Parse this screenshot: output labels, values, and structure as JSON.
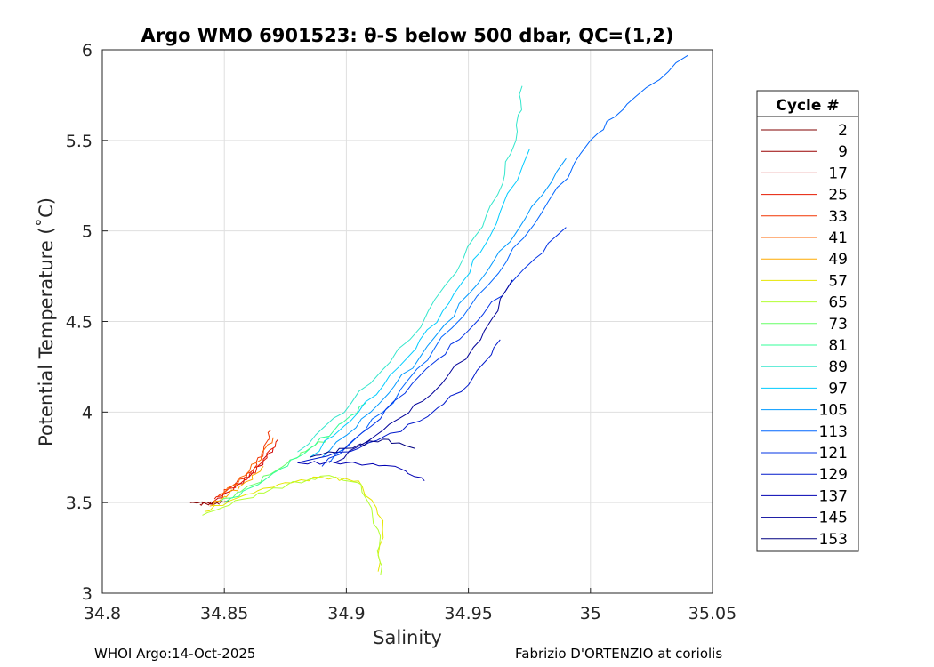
{
  "chart_data": {
    "type": "line",
    "title": "Argo WMO 6901523: θ-S below 500 dbar,  QC=(1,2)",
    "xlabel": "Salinity",
    "ylabel": "Potential Temperature (˚C)",
    "xlim": [
      34.8,
      35.05
    ],
    "ylim": [
      3,
      6
    ],
    "xticks": [
      "34.8",
      "34.85",
      "34.9",
      "34.95",
      "35",
      "35.05"
    ],
    "yticks": [
      "3",
      "3.5",
      "4",
      "4.5",
      "5",
      "5.5",
      "6"
    ],
    "grid": true,
    "colormap": "jet",
    "legend": {
      "title": "Cycle #",
      "placement": "outside-right",
      "entries": [
        "2",
        "9",
        "17",
        "25",
        "33",
        "41",
        "49",
        "57",
        "65",
        "73",
        "81",
        "89",
        "97",
        "105",
        "113",
        "121",
        "129",
        "137",
        "145",
        "153"
      ]
    },
    "series": [
      {
        "name": "2",
        "color": "#800000",
        "x": [
          34.836,
          34.842,
          34.848
        ],
        "y": [
          3.5,
          3.5,
          3.49
        ]
      },
      {
        "name": "9",
        "color": "#990000",
        "x": [
          34.84,
          34.846,
          34.852
        ],
        "y": [
          3.49,
          3.5,
          3.51
        ]
      },
      {
        "name": "17",
        "color": "#cc0000",
        "x": [
          34.845,
          34.852,
          34.858,
          34.864,
          34.87
        ],
        "y": [
          3.5,
          3.56,
          3.62,
          3.7,
          3.8
        ]
      },
      {
        "name": "25",
        "color": "#e61a00",
        "x": [
          34.846,
          34.853,
          34.86,
          34.866,
          34.872
        ],
        "y": [
          3.52,
          3.58,
          3.64,
          3.73,
          3.85
        ]
      },
      {
        "name": "33",
        "color": "#f23300",
        "x": [
          34.847,
          34.854,
          34.861,
          34.866,
          34.869
        ],
        "y": [
          3.53,
          3.6,
          3.67,
          3.78,
          3.9
        ]
      },
      {
        "name": "41",
        "color": "#ff6600",
        "x": [
          34.848,
          34.856,
          34.863,
          34.87
        ],
        "y": [
          3.54,
          3.62,
          3.72,
          3.86
        ]
      },
      {
        "name": "49",
        "color": "#ffaa00",
        "x": [
          34.844,
          34.852,
          34.86,
          34.866
        ],
        "y": [
          3.48,
          3.55,
          3.62,
          3.7
        ]
      },
      {
        "name": "57",
        "color": "#e6e600",
        "x": [
          34.842,
          34.856,
          34.872,
          34.89,
          34.905,
          34.915,
          34.913
        ],
        "y": [
          3.45,
          3.53,
          3.6,
          3.64,
          3.62,
          3.4,
          3.12
        ]
      },
      {
        "name": "65",
        "color": "#b3ff33",
        "x": [
          34.841,
          34.858,
          34.876,
          34.893,
          34.906,
          34.913,
          34.914
        ],
        "y": [
          3.43,
          3.52,
          3.6,
          3.65,
          3.6,
          3.35,
          3.1
        ]
      },
      {
        "name": "73",
        "color": "#66ff66",
        "x": [
          34.848,
          34.862,
          34.876,
          34.885,
          34.893
        ],
        "y": [
          3.5,
          3.6,
          3.72,
          3.8,
          3.86
        ]
      },
      {
        "name": "81",
        "color": "#33ff99",
        "x": [
          34.85,
          34.866,
          34.88,
          34.895,
          34.908
        ],
        "y": [
          3.5,
          3.62,
          3.75,
          3.9,
          4.05
        ]
      },
      {
        "name": "89",
        "color": "#33e6cc",
        "x": [
          34.88,
          34.902,
          34.926,
          34.948,
          34.962,
          34.97,
          34.972
        ],
        "y": [
          3.78,
          4.05,
          4.4,
          4.85,
          5.2,
          5.55,
          5.8
        ]
      },
      {
        "name": "97",
        "color": "#00ccff",
        "x": [
          34.885,
          34.905,
          34.925,
          34.942,
          34.958,
          34.975
        ],
        "y": [
          3.75,
          4.0,
          4.3,
          4.6,
          4.95,
          5.45
        ]
      },
      {
        "name": "105",
        "color": "#0099ff",
        "x": [
          34.89,
          34.91,
          34.93,
          34.95,
          34.97,
          34.99
        ],
        "y": [
          3.75,
          4.0,
          4.3,
          4.65,
          5.0,
          5.4
        ]
      },
      {
        "name": "113",
        "color": "#0066ff",
        "x": [
          34.893,
          34.915,
          34.936,
          34.958,
          34.98,
          35.0,
          35.015,
          35.04
        ],
        "y": [
          3.72,
          4.0,
          4.35,
          4.7,
          5.1,
          5.5,
          5.7,
          5.97
        ]
      },
      {
        "name": "121",
        "color": "#0033e6",
        "x": [
          34.89,
          34.91,
          34.93,
          34.95,
          34.97,
          34.99
        ],
        "y": [
          3.7,
          3.92,
          4.2,
          4.45,
          4.75,
          5.02
        ]
      },
      {
        "name": "129",
        "color": "#0019cc",
        "x": [
          34.88,
          34.905,
          34.93,
          34.95,
          34.963
        ],
        "y": [
          3.72,
          3.8,
          3.95,
          4.15,
          4.4
        ]
      },
      {
        "name": "137",
        "color": "#0000b3",
        "x": [
          34.88,
          34.9,
          34.92,
          34.932
        ],
        "y": [
          3.72,
          3.72,
          3.7,
          3.62
        ]
      },
      {
        "name": "145",
        "color": "#000099",
        "x": [
          34.895,
          34.915,
          34.935,
          34.955,
          34.968
        ],
        "y": [
          3.72,
          3.9,
          4.1,
          4.4,
          4.73
        ]
      },
      {
        "name": "153",
        "color": "#000080",
        "x": [
          34.885,
          34.9,
          34.915,
          34.928
        ],
        "y": [
          3.75,
          3.8,
          3.85,
          3.8
        ]
      }
    ]
  },
  "footer": {
    "left": "WHOI Argo:14-Oct-2025",
    "right": "Fabrizio D'ORTENZIO at coriolis"
  }
}
